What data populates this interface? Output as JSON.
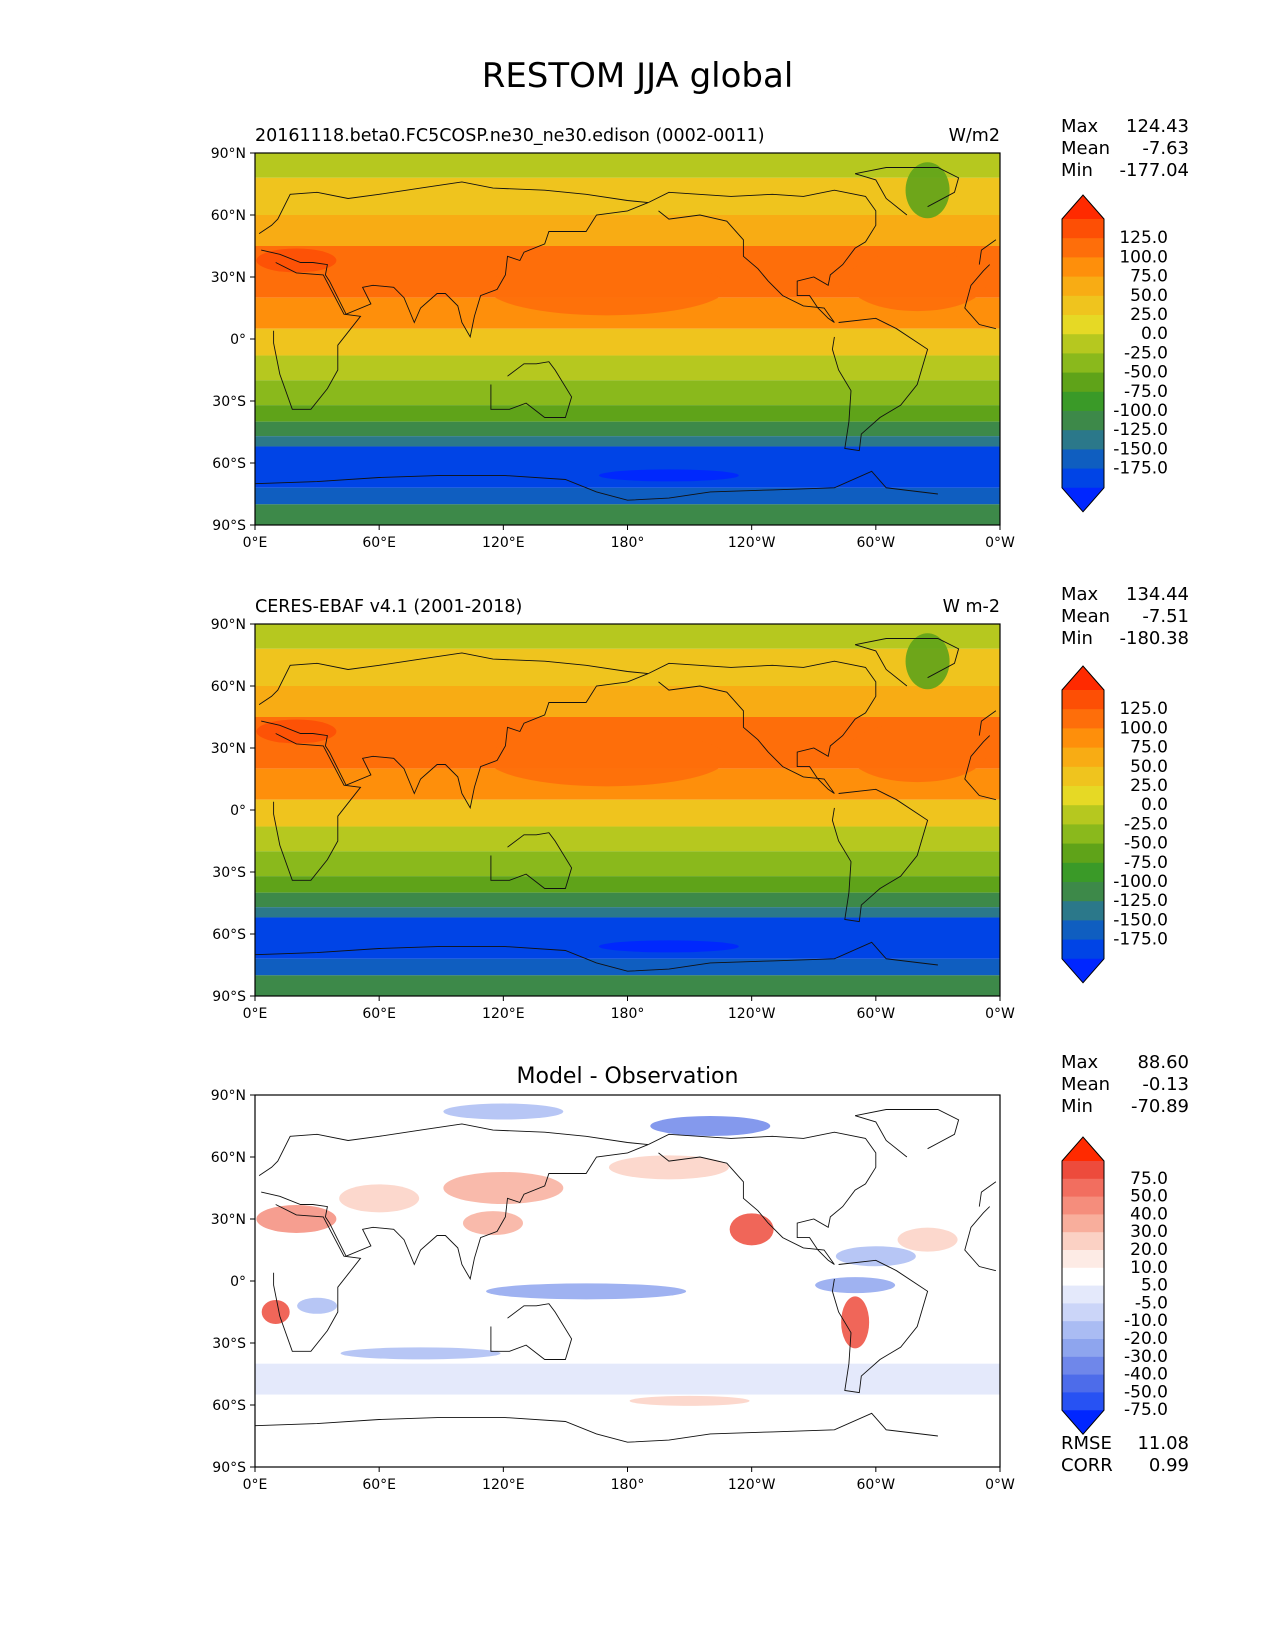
{
  "title": "RESTOM JJA global",
  "panels": [
    {
      "left_title": "20161118.beta0.FC5COSP.ne30_ne30.edison (0002-0011)",
      "center_title": "",
      "units": "W/m2",
      "stats": {
        "Max": "124.43",
        "Mean": "-7.63",
        "Min": "-177.04"
      },
      "extra_stats": null,
      "colormap": "field",
      "colorbar_labels": [
        "125.0",
        "100.0",
        "75.0",
        "50.0",
        "25.0",
        "0.0",
        "-25.0",
        "-50.0",
        "-75.0",
        "-100.0",
        "-125.0",
        "-150.0",
        "-175.0"
      ]
    },
    {
      "left_title": "CERES-EBAF v4.1 (2001-2018)",
      "center_title": "",
      "units": "W m-2",
      "stats": {
        "Max": "134.44",
        "Mean": "-7.51",
        "Min": "-180.38"
      },
      "extra_stats": null,
      "colormap": "field",
      "colorbar_labels": [
        "125.0",
        "100.0",
        "75.0",
        "50.0",
        "25.0",
        "0.0",
        "-25.0",
        "-50.0",
        "-75.0",
        "-100.0",
        "-125.0",
        "-150.0",
        "-175.0"
      ]
    },
    {
      "left_title": "",
      "center_title": "Model - Observation",
      "units": "",
      "stats": {
        "Max": "88.60",
        "Mean": "-0.13",
        "Min": "-70.89"
      },
      "extra_stats": {
        "RMSE": "11.08",
        "CORR": "0.99"
      },
      "colormap": "diff",
      "colorbar_labels": [
        "75.0",
        "50.0",
        "40.0",
        "30.0",
        "20.0",
        "10.0",
        "5.0",
        "-5.0",
        "-10.0",
        "-20.0",
        "-30.0",
        "-40.0",
        "-50.0",
        "-75.0"
      ]
    }
  ],
  "lat_ticks": [
    "90°N",
    "60°N",
    "30°N",
    "0°",
    "30°S",
    "60°S",
    "90°S"
  ],
  "lon_ticks": [
    "0°E",
    "60°E",
    "120°E",
    "180°",
    "120°W",
    "60°W",
    "0°W"
  ],
  "colors": {
    "field": [
      "#ff2a00",
      "#fd4f05",
      "#fe6e0a",
      "#fe8f0b",
      "#f8ac14",
      "#efc41e",
      "#e6d925",
      "#b6c81f",
      "#8ab91c",
      "#5fa319",
      "#3a9a28",
      "#3d8949",
      "#2b788a",
      "#0f5ec0",
      "#0044e6",
      "#0026ff"
    ],
    "diff": [
      "#ff2a00",
      "#ed4b3c",
      "#f26e5f",
      "#f58d7c",
      "#f8ae9c",
      "#fbd1c4",
      "#fdebe5",
      "#ffffff",
      "#e4e9fb",
      "#cbd5f8",
      "#aabcf3",
      "#8ea5ee",
      "#6f87ea",
      "#4d6cea",
      "#2752f3",
      "#0026ff"
    ]
  }
}
